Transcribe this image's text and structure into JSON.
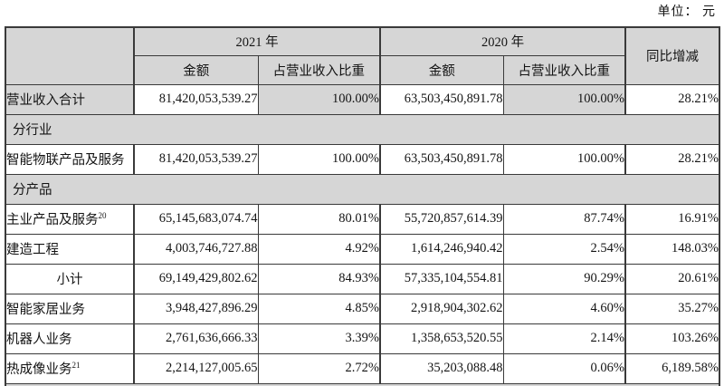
{
  "unit_label": "单位： 元",
  "table": {
    "header": {
      "year_2021": "2021 年",
      "year_2020": "2020 年",
      "amount": "金额",
      "pct": "占营业收入比重",
      "yoy": "同比增减"
    },
    "rows": [
      {
        "type": "data",
        "label": "营业收入合计",
        "highlight": true,
        "a2021": "81,420,053,539.27",
        "p2021": "100.00%",
        "a2020": "63,503,450,891.78",
        "p2020": "100.00%",
        "yoy": "28.21%"
      },
      {
        "type": "section",
        "label": "分行业"
      },
      {
        "type": "data",
        "label": "智能物联产品及服务",
        "a2021": "81,420,053,539.27",
        "p2021": "100.00%",
        "a2020": "63,503,450,891.78",
        "p2020": "100.00%",
        "yoy": "28.21%"
      },
      {
        "type": "section",
        "label": "分产品"
      },
      {
        "type": "data",
        "label": "主业产品及服务",
        "sup": "20",
        "a2021": "65,145,683,074.74",
        "p2021": "80.01%",
        "a2020": "55,720,857,614.39",
        "p2020": "87.74%",
        "yoy": "16.91%"
      },
      {
        "type": "data",
        "label": "建造工程",
        "a2021": "4,003,746,727.88",
        "p2021": "4.92%",
        "a2020": "1,614,246,940.42",
        "p2020": "2.54%",
        "yoy": "148.03%"
      },
      {
        "type": "data",
        "label": "小计",
        "center": true,
        "a2021": "69,149,429,802.62",
        "p2021": "84.93%",
        "a2020": "57,335,104,554.81",
        "p2020": "90.29%",
        "yoy": "20.61%"
      },
      {
        "type": "data",
        "label": "智能家居业务",
        "a2021": "3,948,427,896.29",
        "p2021": "4.85%",
        "a2020": "2,918,904,302.62",
        "p2020": "4.60%",
        "yoy": "35.27%"
      },
      {
        "type": "data",
        "label": "机器人业务",
        "a2021": "2,761,636,666.33",
        "p2021": "3.39%",
        "a2020": "1,358,653,520.55",
        "p2020": "2.14%",
        "yoy": "103.26%"
      },
      {
        "type": "data",
        "label": "热成像业务",
        "sup": "21",
        "a2021": "2,214,127,005.65",
        "p2021": "2.72%",
        "a2020": "35,203,088.48",
        "p2020": "0.06%",
        "yoy": "6,189.58%"
      }
    ]
  }
}
